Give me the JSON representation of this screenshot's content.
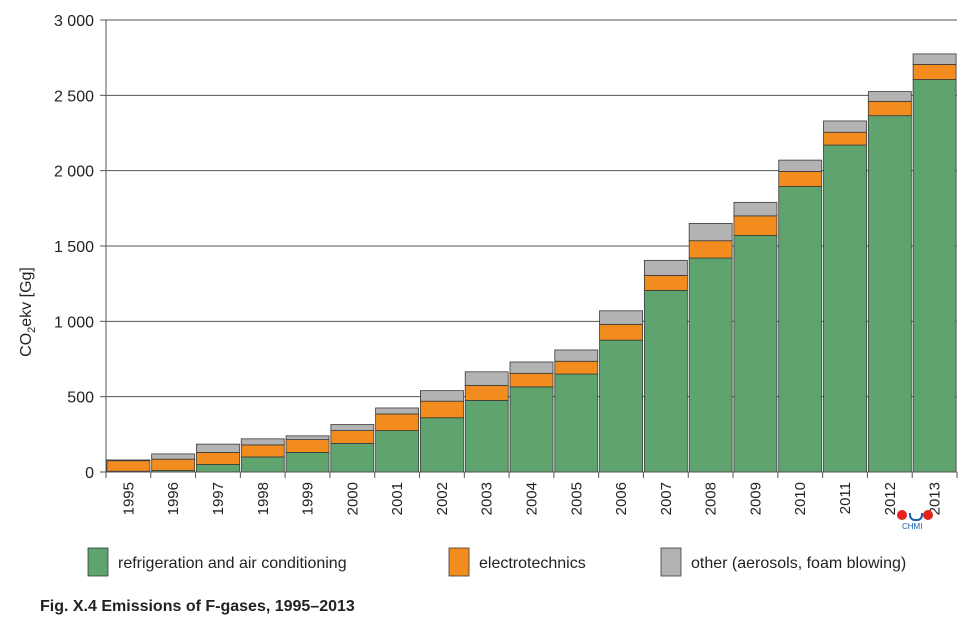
{
  "chart_data": {
    "type": "bar",
    "stacked": true,
    "categories": [
      "1995",
      "1996",
      "1997",
      "1998",
      "1999",
      "2000",
      "2001",
      "2002",
      "2003",
      "2004",
      "2005",
      "2006",
      "2007",
      "2008",
      "2009",
      "2010",
      "2011",
      "2012",
      "2013"
    ],
    "series": [
      {
        "name": "refrigeration and air conditioning",
        "color": "#5fa36f",
        "values": [
          5,
          10,
          50,
          100,
          130,
          190,
          275,
          360,
          475,
          565,
          650,
          875,
          1205,
          1420,
          1570,
          1895,
          2170,
          2365,
          2605
        ]
      },
      {
        "name": "electrotechnics",
        "color": "#f28c1e",
        "values": [
          70,
          75,
          80,
          80,
          85,
          85,
          110,
          110,
          100,
          90,
          85,
          105,
          100,
          115,
          130,
          100,
          85,
          95,
          100
        ]
      },
      {
        "name": "other (aerosols, foam blowing)",
        "color": "#b3b3b3",
        "values": [
          5,
          35,
          55,
          40,
          25,
          40,
          40,
          70,
          90,
          75,
          75,
          90,
          100,
          115,
          90,
          75,
          75,
          65,
          70
        ]
      }
    ],
    "ylabel": "CO2ekv [Gg]",
    "ylim": [
      0,
      3000
    ],
    "yticks": [
      0,
      500,
      1000,
      1500,
      2000,
      2500,
      3000
    ],
    "ytick_labels": [
      "0",
      "500",
      "1 000",
      "1 500",
      "2 000",
      "2 500",
      "3 000"
    ],
    "grid": true,
    "legend_position": "bottom"
  },
  "caption": "Fig. X.4  Emissions of F-gases, 1995–2013",
  "logo_text": "CHMI"
}
